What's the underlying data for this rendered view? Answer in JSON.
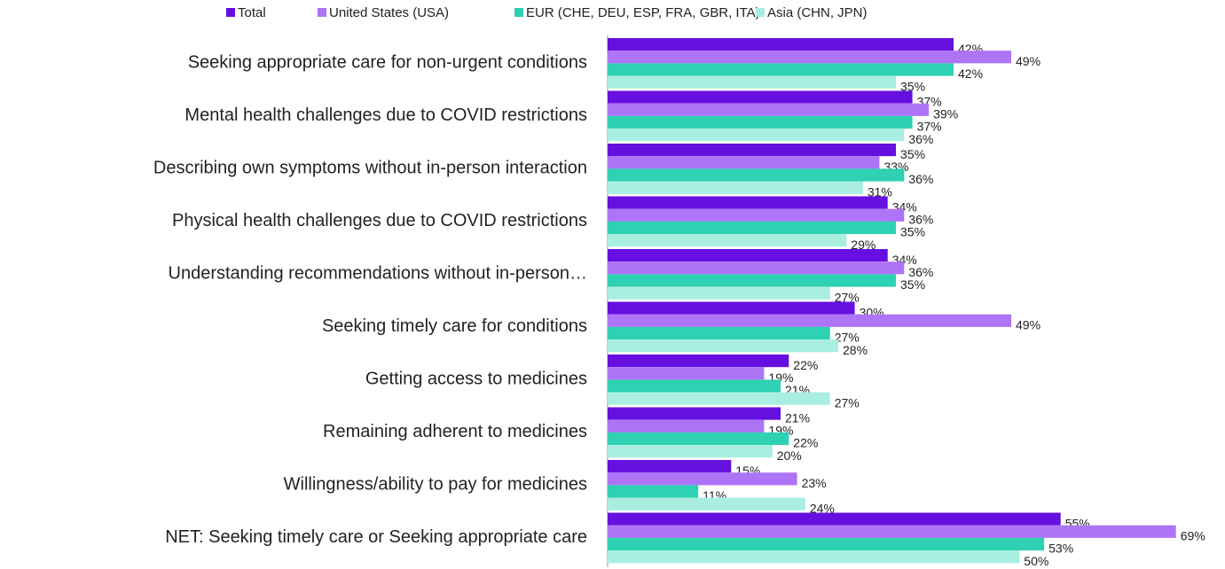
{
  "chart_data": {
    "type": "bar",
    "orientation": "horizontal",
    "categories": [
      "Seeking appropriate care for non-urgent conditions",
      "Mental health challenges due to COVID restrictions",
      "Describing own symptoms without in-person interaction",
      "Physical health challenges due to COVID restrictions",
      "Understanding recommendations without in-person…",
      "Seeking timely care for conditions",
      "Getting access to medicines",
      "Remaining adherent to medicines",
      "Willingness/ability to pay for medicines",
      "NET: Seeking timely care or Seeking appropriate care"
    ],
    "series": [
      {
        "name": "Total",
        "color": "#6610e0",
        "values": [
          42,
          37,
          35,
          34,
          34,
          30,
          22,
          21,
          15,
          55
        ],
        "value_labels": [
          "42%",
          "37%",
          "35%",
          "34%",
          "34%",
          "30%",
          "22%",
          "21%",
          "15%",
          "55%"
        ]
      },
      {
        "name": "United States (USA)",
        "color": "#ae74f6",
        "values": [
          49,
          39,
          33,
          36,
          36,
          49,
          19,
          19,
          23,
          69
        ],
        "value_labels": [
          "49%",
          "39%",
          "33%",
          "36%",
          "36%",
          "49%",
          "19%",
          "19%",
          "23%",
          "69%"
        ]
      },
      {
        "name": "EUR (CHE, DEU, ESP, FRA, GBR, ITA)",
        "color": "#2ed1b2",
        "values": [
          42,
          37,
          36,
          35,
          35,
          27,
          21,
          22,
          11,
          53
        ],
        "value_labels": [
          "42%",
          "37%",
          "36%",
          "35%",
          "35%",
          "27%",
          "21%",
          "22%",
          "11%",
          "53%"
        ]
      },
      {
        "name": "Asia (CHN, JPN)",
        "color": "#a9eee1",
        "values": [
          35,
          36,
          31,
          29,
          27,
          28,
          27,
          20,
          24,
          50
        ],
        "value_labels": [
          "35%",
          "36%",
          "31%",
          "29%",
          "27%",
          "28%",
          "27%",
          "20%",
          "24%",
          "50%"
        ]
      }
    ]
  }
}
